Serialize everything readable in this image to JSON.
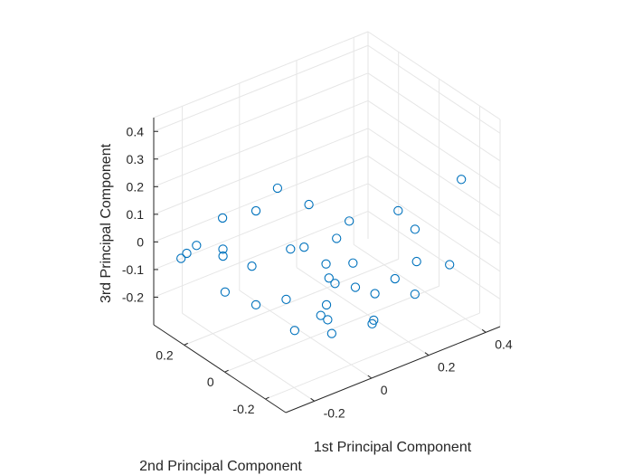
{
  "chart_data": {
    "type": "scatter",
    "title": "",
    "xlabel": "1st Principal Component",
    "ylabel": "2nd Principal Component",
    "zlabel": "3rd Principal Component",
    "xlim": [
      -0.3,
      0.45
    ],
    "ylim": [
      -0.3,
      0.35
    ],
    "zlim": [
      -0.3,
      0.45
    ],
    "x_ticks": [
      "-0.2",
      "0",
      "0.2",
      "0.4"
    ],
    "y_ticks": [
      "-0.2",
      "0",
      "0.2"
    ],
    "z_ticks": [
      "0.4",
      "0.3",
      "0.2",
      "0.1",
      "0",
      "-0.1",
      "-0.2"
    ],
    "grid": true,
    "marker": "open-circle",
    "color": "#0072BD",
    "series": [
      {
        "name": "",
        "points": [
          {
            "x": 0.35,
            "y": -0.25,
            "z": 0.25
          },
          {
            "x": 0.2,
            "y": -0.15,
            "z": 0.15
          },
          {
            "x": 0.33,
            "y": -0.05,
            "z": -0.02
          },
          {
            "x": 0.05,
            "y": -0.12,
            "z": 0.16
          },
          {
            "x": -0.02,
            "y": -0.02,
            "z": 0.2
          },
          {
            "x": 0.02,
            "y": -0.1,
            "z": 0.1
          },
          {
            "x": -0.08,
            "y": 0.05,
            "z": 0.25
          },
          {
            "x": -0.12,
            "y": 0.1,
            "z": 0.16
          },
          {
            "x": -0.18,
            "y": 0.18,
            "z": 0.12
          },
          {
            "x": -0.2,
            "y": 0.15,
            "z": 0.03
          },
          {
            "x": -0.07,
            "y": 0.0,
            "z": 0.05
          },
          {
            "x": -0.15,
            "y": 0.22,
            "z": -0.05
          },
          {
            "x": -0.2,
            "y": 0.28,
            "z": -0.02
          },
          {
            "x": -0.22,
            "y": 0.3,
            "z": -0.05
          },
          {
            "x": -0.24,
            "y": 0.3,
            "z": -0.06
          },
          {
            "x": -0.12,
            "y": 0.12,
            "z": -0.05
          },
          {
            "x": -0.12,
            "y": 0.1,
            "z": -0.18
          },
          {
            "x": 0.05,
            "y": -0.05,
            "z": -0.1
          },
          {
            "x": 0.1,
            "y": -0.08,
            "z": -0.12
          },
          {
            "x": 0.14,
            "y": -0.12,
            "z": -0.14
          },
          {
            "x": 0.28,
            "y": -0.12,
            "z": -0.2
          },
          {
            "x": 0.26,
            "y": -0.05,
            "z": -0.17
          },
          {
            "x": 0.3,
            "y": -0.1,
            "z": -0.1
          },
          {
            "x": 0.38,
            "y": -0.15,
            "z": -0.12
          },
          {
            "x": 0.05,
            "y": 0.02,
            "z": -0.25
          },
          {
            "x": 0.06,
            "y": 0.0,
            "z": -0.26
          },
          {
            "x": 0.07,
            "y": 0.02,
            "z": -0.22
          },
          {
            "x": -0.02,
            "y": 0.05,
            "z": -0.29
          },
          {
            "x": 0.06,
            "y": -0.02,
            "z": -0.3
          },
          {
            "x": 0.15,
            "y": -0.1,
            "z": -0.25
          },
          {
            "x": 0.0,
            "y": 0.12,
            "z": -0.22
          },
          {
            "x": 0.1,
            "y": 0.05,
            "z": -0.15
          },
          {
            "x": 0.04,
            "y": -0.02,
            "z": -0.04
          },
          {
            "x": 0.02,
            "y": 0.06,
            "z": -0.01
          },
          {
            "x": 0.12,
            "y": -0.04,
            "z": -0.06
          },
          {
            "x": -0.1,
            "y": 0.28,
            "z": -0.23
          },
          {
            "x": 0.18,
            "y": -0.05,
            "z": -0.3
          }
        ]
      }
    ]
  }
}
